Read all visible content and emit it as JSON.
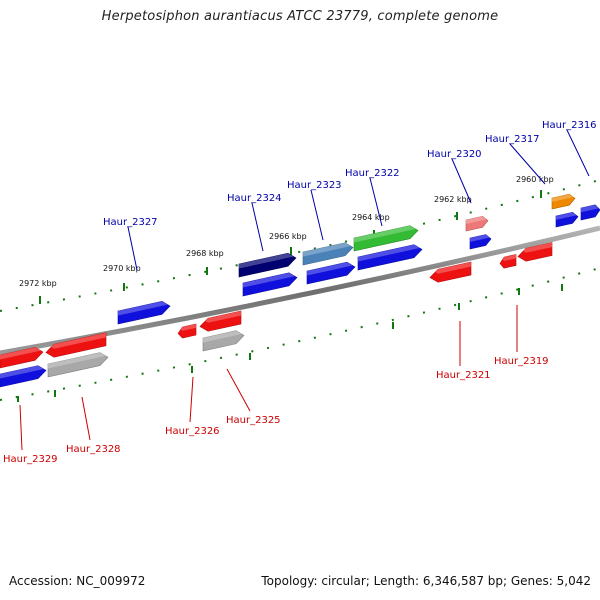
{
  "header": {
    "title": "Herpetosiphon aurantiacus ATCC 23779, complete genome"
  },
  "footer": {
    "accession": "Accession: NC_009972",
    "summary": "Topology: circular; Length: 6,346,587 bp; Genes: 5,042"
  },
  "kbp_ticks": [
    "2972 kbp",
    "2970 kbp",
    "2968 kbp",
    "2966 kbp",
    "2964 kbp",
    "2962 kbp",
    "2960 kbp"
  ],
  "gene_labels": {
    "top": [
      "Haur_2327",
      "Haur_2324",
      "Haur_2323",
      "Haur_2322",
      "Haur_2320",
      "Haur_2317",
      "Haur_2316"
    ],
    "bottom": [
      "Haur_2329",
      "Haur_2328",
      "Haur_2326",
      "Haur_2325",
      "Haur_2321",
      "Haur_2319"
    ]
  },
  "colors": {
    "label_top": "#0000aa",
    "label_bottom": "#cc0000",
    "blue": "#1010dd",
    "red": "#ee1111",
    "gray": "#a8a8a8",
    "navy": "#000070",
    "steel": "#4a82b8",
    "green": "#33bb33",
    "pink": "#ee7777",
    "orange": "#ee8800",
    "tick": "#117711",
    "backbone": "#888888"
  }
}
